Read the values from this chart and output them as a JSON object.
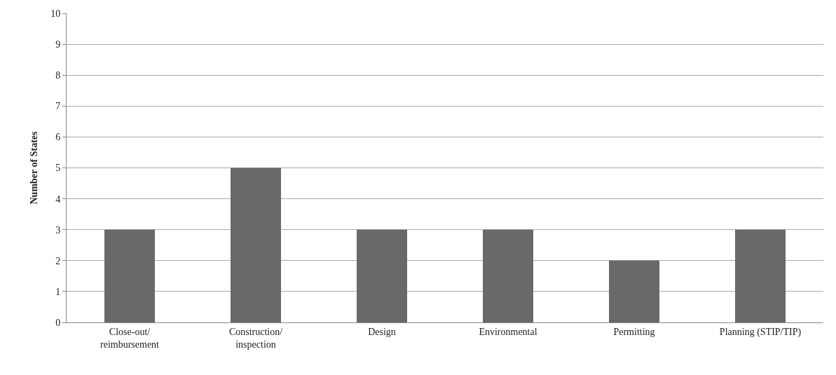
{
  "chart_data": {
    "type": "bar",
    "ylabel": "Number of States",
    "categories": [
      "Close-out/\nreimbursement",
      "Construction/\ninspection",
      "Design",
      "Environmental",
      "Permitting",
      "Planning (STIP/TIP)"
    ],
    "values": [
      3,
      5,
      3,
      3,
      2,
      3
    ],
    "color": "#696969",
    "ylim": [
      0,
      10
    ],
    "yticks": [
      0,
      1,
      2,
      3,
      4,
      5,
      6,
      7,
      8,
      9,
      10
    ],
    "grid": "y"
  }
}
